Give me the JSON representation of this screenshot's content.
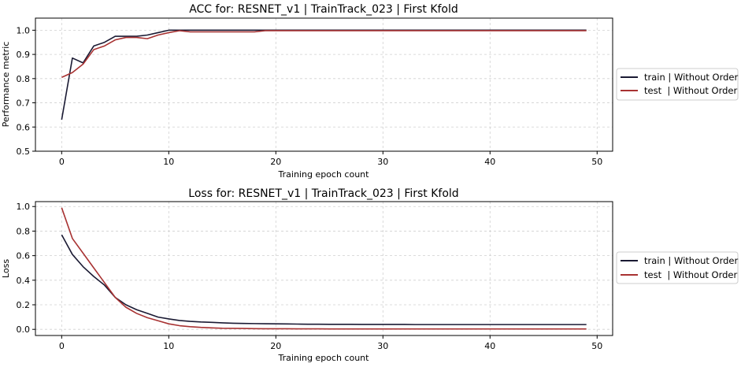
{
  "chart_data": [
    {
      "type": "line",
      "title": "ACC for:  RESNET_v1 | TrainTrack_023 | First Kfold",
      "xlabel": "Training epoch count",
      "ylabel": "Performance metric",
      "xlim": [
        -2.45,
        51.45
      ],
      "ylim": [
        0.5,
        1.05
      ],
      "xticks": [
        0,
        10,
        20,
        30,
        40,
        50
      ],
      "yticks": [
        0.5,
        0.6,
        0.7,
        0.8,
        0.9,
        1.0
      ],
      "grid": true,
      "legend_position": "right",
      "x": [
        0,
        1,
        2,
        3,
        4,
        5,
        6,
        7,
        8,
        9,
        10,
        11,
        12,
        13,
        14,
        15,
        16,
        17,
        18,
        19,
        20,
        21,
        22,
        23,
        24,
        25,
        26,
        27,
        28,
        29,
        30,
        31,
        32,
        33,
        34,
        35,
        36,
        37,
        38,
        39,
        40,
        41,
        42,
        43,
        44,
        45,
        46,
        47,
        48,
        49
      ],
      "series": [
        {
          "name": "train | Without Order",
          "color": "#1a1a33",
          "values": [
            0.63,
            0.885,
            0.865,
            0.935,
            0.95,
            0.975,
            0.975,
            0.975,
            0.98,
            0.99,
            1.0,
            1.0,
            1.0,
            1.0,
            1.0,
            1.0,
            1.0,
            1.0,
            1.0,
            1.0,
            1.0,
            1.0,
            1.0,
            1.0,
            1.0,
            1.0,
            1.0,
            1.0,
            1.0,
            1.0,
            1.0,
            1.0,
            1.0,
            1.0,
            1.0,
            1.0,
            1.0,
            1.0,
            1.0,
            1.0,
            1.0,
            1.0,
            1.0,
            1.0,
            1.0,
            1.0,
            1.0,
            1.0,
            1.0,
            1.0
          ]
        },
        {
          "name": "test  | Without Order",
          "color": "#a83232",
          "values": [
            0.805,
            0.825,
            0.86,
            0.92,
            0.935,
            0.96,
            0.97,
            0.97,
            0.965,
            0.98,
            0.99,
            0.998,
            0.993,
            0.993,
            0.993,
            0.993,
            0.993,
            0.993,
            0.993,
            0.998,
            0.998,
            0.998,
            0.998,
            0.998,
            0.998,
            0.998,
            0.998,
            0.998,
            0.998,
            0.998,
            0.998,
            0.998,
            0.998,
            0.998,
            0.998,
            0.998,
            0.998,
            0.998,
            0.998,
            0.998,
            0.998,
            0.998,
            0.998,
            0.998,
            0.998,
            0.998,
            0.998,
            0.998,
            0.998,
            0.998
          ]
        }
      ]
    },
    {
      "type": "line",
      "title": "Loss for:  RESNET_v1 | TrainTrack_023 | First Kfold",
      "xlabel": "Training epoch count",
      "ylabel": "Loss",
      "xlim": [
        -2.45,
        51.45
      ],
      "ylim": [
        -0.05,
        1.04
      ],
      "xticks": [
        0,
        10,
        20,
        30,
        40,
        50
      ],
      "yticks": [
        0.0,
        0.2,
        0.4,
        0.6,
        0.8,
        1.0
      ],
      "grid": true,
      "legend_position": "right",
      "x": [
        0,
        1,
        2,
        3,
        4,
        5,
        6,
        7,
        8,
        9,
        10,
        11,
        12,
        13,
        14,
        15,
        16,
        17,
        18,
        19,
        20,
        21,
        22,
        23,
        24,
        25,
        26,
        27,
        28,
        29,
        30,
        31,
        32,
        33,
        34,
        35,
        36,
        37,
        38,
        39,
        40,
        41,
        42,
        43,
        44,
        45,
        46,
        47,
        48,
        49
      ],
      "series": [
        {
          "name": "train | Without Order",
          "color": "#1a1a33",
          "values": [
            0.77,
            0.61,
            0.51,
            0.43,
            0.36,
            0.26,
            0.2,
            0.16,
            0.13,
            0.1,
            0.085,
            0.072,
            0.065,
            0.06,
            0.057,
            0.053,
            0.05,
            0.048,
            0.047,
            0.046,
            0.045,
            0.044,
            0.043,
            0.042,
            0.042,
            0.041,
            0.041,
            0.041,
            0.04,
            0.04,
            0.04,
            0.04,
            0.04,
            0.039,
            0.039,
            0.039,
            0.039,
            0.039,
            0.039,
            0.039,
            0.039,
            0.039,
            0.039,
            0.039,
            0.039,
            0.039,
            0.039,
            0.039,
            0.039,
            0.039
          ]
        },
        {
          "name": "test  | Without Order",
          "color": "#a83232",
          "values": [
            0.99,
            0.74,
            0.62,
            0.5,
            0.38,
            0.26,
            0.18,
            0.13,
            0.095,
            0.07,
            0.045,
            0.03,
            0.022,
            0.016,
            0.012,
            0.009,
            0.008,
            0.007,
            0.006,
            0.005,
            0.005,
            0.005,
            0.004,
            0.004,
            0.004,
            0.003,
            0.003,
            0.003,
            0.003,
            0.003,
            0.003,
            0.003,
            0.003,
            0.003,
            0.003,
            0.003,
            0.003,
            0.003,
            0.003,
            0.003,
            0.003,
            0.003,
            0.003,
            0.003,
            0.003,
            0.003,
            0.003,
            0.003,
            0.003,
            0.003
          ]
        }
      ]
    }
  ]
}
